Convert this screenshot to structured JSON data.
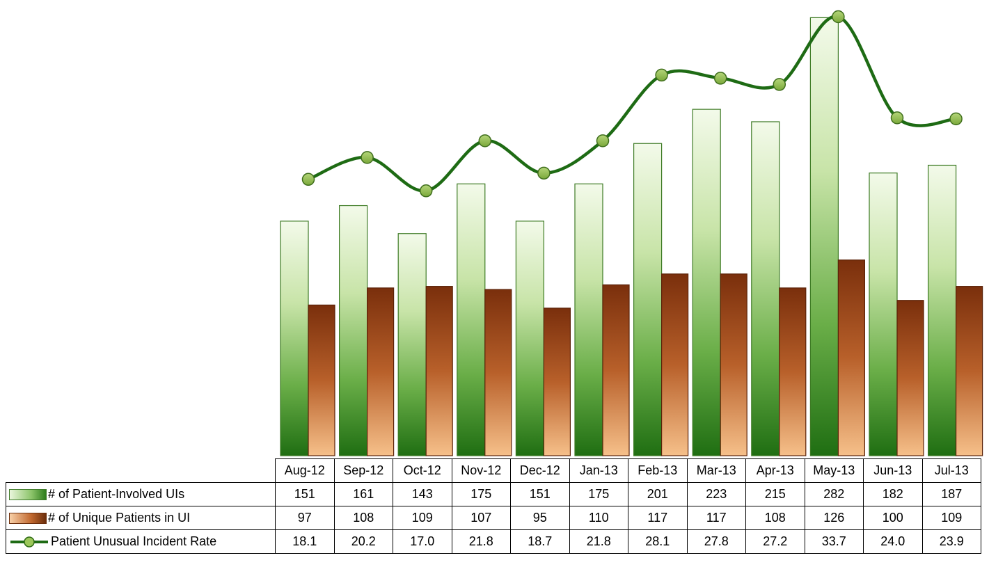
{
  "chart_data": {
    "type": "bar",
    "categories": [
      "Aug-12",
      "Sep-12",
      "Oct-12",
      "Nov-12",
      "Dec-12",
      "Jan-13",
      "Feb-13",
      "Mar-13",
      "Apr-13",
      "May-13",
      "Jun-13",
      "Jul-13"
    ],
    "series": [
      {
        "name": "# of Patient-Involved UIs",
        "kind": "bar",
        "color": "#2e7d1c",
        "values": [
          151,
          161,
          143,
          175,
          151,
          175,
          201,
          223,
          215,
          282,
          182,
          187
        ],
        "labels": [
          "151",
          "161",
          "143",
          "175",
          "151",
          "175",
          "201",
          "223",
          "215",
          "282",
          "182",
          "187"
        ]
      },
      {
        "name": "# of Unique Patients in UI",
        "kind": "bar",
        "color": "#8b3a12",
        "values": [
          97,
          108,
          109,
          107,
          95,
          110,
          117,
          117,
          108,
          126,
          100,
          109
        ],
        "labels": [
          "97",
          "108",
          "109",
          "107",
          "95",
          "110",
          "117",
          "117",
          "108",
          "126",
          "100",
          "109"
        ]
      },
      {
        "name": "Patient Unusual Incident Rate",
        "kind": "line",
        "color": "#1e6b14",
        "marker_color": "#8cb84a",
        "values": [
          18.1,
          20.2,
          17.0,
          21.8,
          18.7,
          21.8,
          28.1,
          27.8,
          27.2,
          33.7,
          24.0,
          23.9
        ],
        "labels": [
          "18.1",
          "20.2",
          "17.0",
          "21.8",
          "18.7",
          "21.8",
          "28.1",
          "27.8",
          "27.2",
          "33.7",
          "24.0",
          "23.9"
        ]
      }
    ],
    "bar_ylim": [
      0,
      288
    ],
    "line_ylim": [
      -8.4,
      34.5
    ],
    "legend_position": "data-table",
    "grid": false,
    "title": "",
    "xlabel": "",
    "ylabel": ""
  }
}
